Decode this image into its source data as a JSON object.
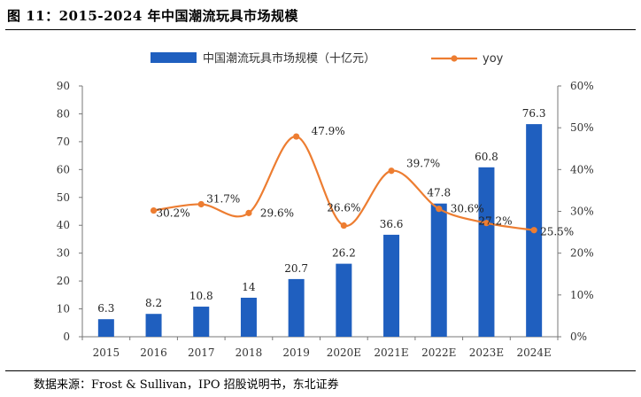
{
  "figure": {
    "title": "图  11：2015-2024 年中国潮流玩具市场规模",
    "source": "数据来源：Frost & Sullivan，IPO 招股说明书，东北证券"
  },
  "chart_data": {
    "type": "bar",
    "categories": [
      "2015",
      "2016",
      "2017",
      "2018",
      "2019",
      "2020E",
      "2021E",
      "2022E",
      "2023E",
      "2024E"
    ],
    "series": [
      {
        "name": "中国潮流玩具市场规模（十亿元）",
        "type": "bar",
        "axis": "left",
        "values": [
          6.3,
          8.2,
          10.8,
          14,
          20.7,
          26.2,
          36.6,
          47.8,
          60.8,
          76.3
        ],
        "labels": [
          "6.3",
          "8.2",
          "10.8",
          "14",
          "20.7",
          "26.2",
          "36.6",
          "47.8",
          "60.8",
          "76.3"
        ],
        "color": "#1f5fbf"
      },
      {
        "name": "yoy",
        "type": "line",
        "smooth": true,
        "axis": "right",
        "values": [
          null,
          30.2,
          31.7,
          29.6,
          47.9,
          26.6,
          39.7,
          30.6,
          27.2,
          25.5
        ],
        "labels": [
          "",
          "30.2%",
          "31.7%",
          "29.6%",
          "47.9%",
          "26.6%",
          "39.7%",
          "30.6%",
          "27.2%",
          "25.5%"
        ],
        "color": "#ed7d31"
      }
    ],
    "y_left": {
      "min": 0,
      "max": 90,
      "ticks": [
        "0",
        "10",
        "20",
        "30",
        "40",
        "50",
        "60",
        "70",
        "80",
        "90"
      ]
    },
    "y_right": {
      "min": 0,
      "max": 60,
      "ticks": [
        "0%",
        "10%",
        "20%",
        "30%",
        "40%",
        "50%",
        "60%"
      ]
    },
    "legend": "top-center",
    "grid": false
  }
}
